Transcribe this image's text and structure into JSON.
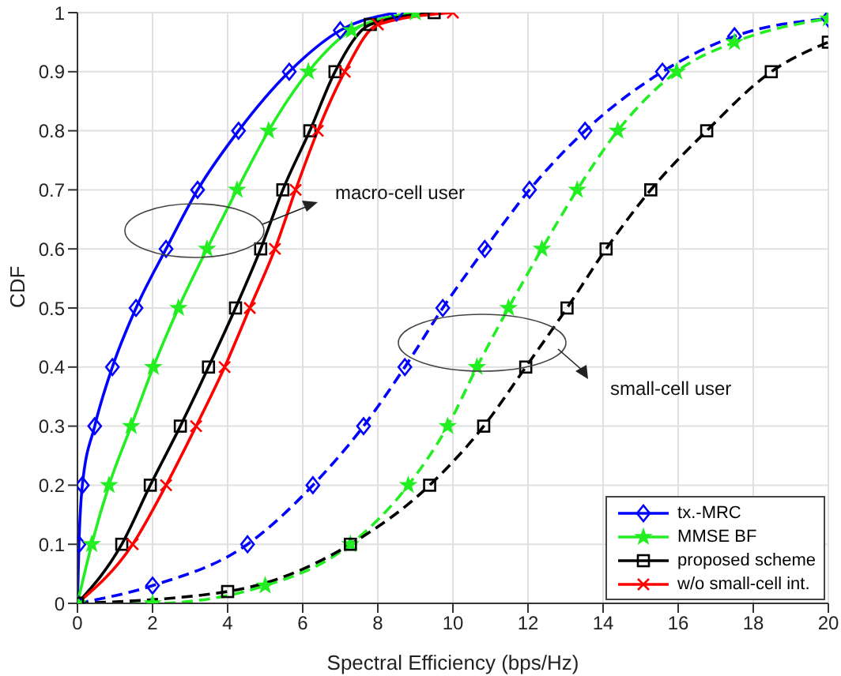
{
  "chart_data": {
    "type": "line",
    "xlabel": "Spectral Efficiency (bps/Hz)",
    "ylabel": "CDF",
    "xlim": [
      0,
      20
    ],
    "xticks": [
      0,
      2,
      4,
      6,
      8,
      10,
      12,
      14,
      16,
      18,
      20
    ],
    "ylim": [
      0,
      1
    ],
    "yticks": [
      0,
      0.1,
      0.2,
      0.3,
      0.4,
      0.5,
      0.6,
      0.7,
      0.8,
      0.9,
      1
    ],
    "grid": true,
    "legend": "bottom right",
    "annotations": [
      "macro-cell user",
      "small-cell user"
    ],
    "series": [
      {
        "name": "tx.-MRC",
        "color": "#0000ff",
        "marker": "diamond",
        "line_style": "solid",
        "x": [
          0,
          0.04,
          0.13,
          0.46,
          0.93,
          1.56,
          2.36,
          3.2,
          4.29,
          5.64,
          7,
          8.5
        ],
        "values": [
          0,
          0.1,
          0.2,
          0.3,
          0.4,
          0.5,
          0.6,
          0.7,
          0.8,
          0.9,
          0.97,
          1
        ]
      },
      {
        "name": "MMSE BF",
        "color": "#22ee22",
        "marker": "star",
        "line_style": "solid",
        "x": [
          0,
          0.38,
          0.84,
          1.43,
          2.02,
          2.69,
          3.45,
          4.25,
          5.09,
          6.15,
          7.3,
          9
        ],
        "values": [
          0,
          0.1,
          0.2,
          0.3,
          0.4,
          0.5,
          0.6,
          0.7,
          0.8,
          0.9,
          0.97,
          1
        ]
      },
      {
        "name": "proposed scheme",
        "color": "#000000",
        "marker": "square",
        "line_style": "solid",
        "x": [
          0,
          1.18,
          1.94,
          2.74,
          3.49,
          4.21,
          4.88,
          5.47,
          6.19,
          6.86,
          7.8,
          9.5
        ],
        "values": [
          0,
          0.1,
          0.2,
          0.3,
          0.4,
          0.5,
          0.6,
          0.7,
          0.8,
          0.9,
          0.98,
          1
        ]
      },
      {
        "name": "w/o small-cell int.",
        "color": "#ff0000",
        "marker": "cross",
        "line_style": "solid",
        "x": [
          0,
          1.47,
          2.36,
          3.16,
          3.92,
          4.59,
          5.26,
          5.81,
          6.4,
          7.12,
          8,
          10
        ],
        "values": [
          0,
          0.1,
          0.2,
          0.3,
          0.4,
          0.5,
          0.6,
          0.7,
          0.8,
          0.9,
          0.98,
          1
        ]
      },
      {
        "color": "#0000ff",
        "marker": "diamond",
        "line_style": "dashed",
        "x": [
          0,
          2,
          4.53,
          6.27,
          7.62,
          8.72,
          9.73,
          10.85,
          12.04,
          13.52,
          15.58,
          17.5,
          20
        ],
        "values": [
          0,
          0.03,
          0.1,
          0.2,
          0.3,
          0.4,
          0.5,
          0.6,
          0.7,
          0.8,
          0.9,
          0.96,
          0.99
        ]
      },
      {
        "color": "#22ee22",
        "marker": "star",
        "line_style": "dashed",
        "x": [
          0,
          2,
          5,
          7.27,
          8.81,
          9.86,
          10.64,
          11.48,
          12.37,
          13.31,
          14.39,
          15.96,
          17.5,
          20
        ],
        "values": [
          0,
          0,
          0.03,
          0.1,
          0.2,
          0.3,
          0.4,
          0.5,
          0.6,
          0.7,
          0.8,
          0.9,
          0.95,
          0.99
        ]
      },
      {
        "color": "#000000",
        "marker": "square",
        "line_style": "dashed",
        "x": [
          0,
          4,
          7.27,
          9.38,
          10.82,
          11.94,
          13.04,
          14.08,
          15.27,
          16.76,
          18.48,
          20
        ],
        "values": [
          0,
          0.02,
          0.1,
          0.2,
          0.3,
          0.4,
          0.5,
          0.6,
          0.7,
          0.8,
          0.9,
          0.95
        ]
      }
    ]
  }
}
